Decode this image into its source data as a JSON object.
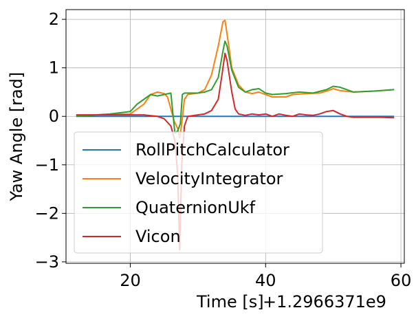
{
  "chart_data": {
    "type": "line",
    "xlabel": "Time [s]",
    "x_offset_text": "+1.2966371e9",
    "ylabel": "Yaw Angle [rad]",
    "xlim": [
      10.5,
      60.5
    ],
    "ylim": [
      -3.03,
      2.2
    ],
    "xticks": [
      20,
      40,
      60
    ],
    "xtick_labels": [
      "20",
      "40",
      "60"
    ],
    "yticks": [
      -3,
      -2,
      -1,
      0,
      1,
      2
    ],
    "ytick_labels": [
      "−3",
      "−2",
      "−1",
      "0",
      "1",
      "2"
    ],
    "grid": true,
    "legend_position": "lower-left",
    "series": [
      {
        "name": "RollPitchCalculator",
        "color": "#1f77b4",
        "points": [
          [
            12,
            0.0
          ],
          [
            27.3,
            0.0
          ],
          [
            59,
            0.0
          ]
        ]
      },
      {
        "name": "VelocityIntegrator",
        "color": "#ff7f0e",
        "points": [
          [
            12,
            0.02
          ],
          [
            17,
            0.04
          ],
          [
            20,
            0.05
          ],
          [
            22,
            0.25
          ],
          [
            23,
            0.45
          ],
          [
            24,
            0.5
          ],
          [
            25,
            0.47
          ],
          [
            25.5,
            0.4
          ],
          [
            26,
            0.15
          ],
          [
            26.5,
            -0.1
          ],
          [
            27,
            -0.25
          ],
          [
            27.3,
            -0.45
          ],
          [
            27.6,
            -0.15
          ],
          [
            28,
            0.35
          ],
          [
            28.5,
            0.45
          ],
          [
            30,
            0.48
          ],
          [
            31,
            0.55
          ],
          [
            32,
            0.85
          ],
          [
            33,
            1.45
          ],
          [
            33.7,
            1.95
          ],
          [
            34,
            1.98
          ],
          [
            34.4,
            1.6
          ],
          [
            35,
            1.0
          ],
          [
            36,
            0.65
          ],
          [
            37,
            0.5
          ],
          [
            38,
            0.47
          ],
          [
            39,
            0.5
          ],
          [
            40,
            0.45
          ],
          [
            41,
            0.4
          ],
          [
            43,
            0.4
          ],
          [
            44,
            0.45
          ],
          [
            46,
            0.47
          ],
          [
            48,
            0.48
          ],
          [
            49,
            0.52
          ],
          [
            50,
            0.57
          ],
          [
            51,
            0.53
          ],
          [
            53,
            0.5
          ],
          [
            56,
            0.52
          ],
          [
            59,
            0.55
          ]
        ]
      },
      {
        "name": "QuaternionUkf",
        "color": "#2ca02c",
        "points": [
          [
            12,
            0.0
          ],
          [
            17,
            0.05
          ],
          [
            20,
            0.1
          ],
          [
            21,
            0.25
          ],
          [
            22,
            0.35
          ],
          [
            23,
            0.45
          ],
          [
            24,
            0.42
          ],
          [
            25,
            0.45
          ],
          [
            26,
            0.48
          ],
          [
            26.3,
            0.05
          ],
          [
            26.6,
            -0.35
          ],
          [
            27,
            -0.3
          ],
          [
            27.4,
            -0.15
          ],
          [
            27.7,
            0.45
          ],
          [
            28,
            0.48
          ],
          [
            30,
            0.48
          ],
          [
            31,
            0.5
          ],
          [
            32,
            0.55
          ],
          [
            33,
            0.8
          ],
          [
            33.7,
            1.35
          ],
          [
            34,
            1.55
          ],
          [
            34.3,
            1.45
          ],
          [
            35,
            0.95
          ],
          [
            36,
            0.6
          ],
          [
            37,
            0.5
          ],
          [
            38,
            0.55
          ],
          [
            39,
            0.57
          ],
          [
            40,
            0.48
          ],
          [
            41,
            0.45
          ],
          [
            43,
            0.47
          ],
          [
            45,
            0.5
          ],
          [
            47,
            0.48
          ],
          [
            49,
            0.55
          ],
          [
            50,
            0.62
          ],
          [
            51,
            0.6
          ],
          [
            52,
            0.55
          ],
          [
            53,
            0.5
          ],
          [
            56,
            0.52
          ],
          [
            59,
            0.55
          ]
        ]
      },
      {
        "name": "Vicon",
        "color": "#d62728",
        "points": [
          [
            12,
            0.03
          ],
          [
            15,
            0.03
          ],
          [
            20,
            0.03
          ],
          [
            22,
            0.03
          ],
          [
            24,
            0.0
          ],
          [
            25,
            -0.05
          ],
          [
            26,
            -0.2
          ],
          [
            26.6,
            -0.5
          ],
          [
            27,
            -1.2
          ],
          [
            27.3,
            -2.75
          ],
          [
            27.6,
            -1.0
          ],
          [
            28,
            -0.2
          ],
          [
            28.5,
            0.0
          ],
          [
            30,
            0.03
          ],
          [
            31,
            0.05
          ],
          [
            32,
            0.12
          ],
          [
            33,
            0.35
          ],
          [
            33.6,
            0.9
          ],
          [
            34,
            1.3
          ],
          [
            34.3,
            1.15
          ],
          [
            35,
            0.5
          ],
          [
            35.5,
            0.15
          ],
          [
            36,
            0.05
          ],
          [
            37,
            0.02
          ],
          [
            38,
            0.05
          ],
          [
            39,
            0.03
          ],
          [
            40,
            0.05
          ],
          [
            41,
            0.0
          ],
          [
            42,
            0.05
          ],
          [
            43,
            0.02
          ],
          [
            44,
            0.0
          ],
          [
            45,
            0.05
          ],
          [
            46,
            0.03
          ],
          [
            47,
            0.02
          ],
          [
            48,
            0.05
          ],
          [
            49,
            0.1
          ],
          [
            50,
            0.12
          ],
          [
            51,
            0.05
          ],
          [
            52,
            0.0
          ],
          [
            53,
            -0.02
          ],
          [
            55,
            -0.02
          ],
          [
            57,
            -0.02
          ],
          [
            59,
            -0.03
          ]
        ]
      }
    ]
  }
}
